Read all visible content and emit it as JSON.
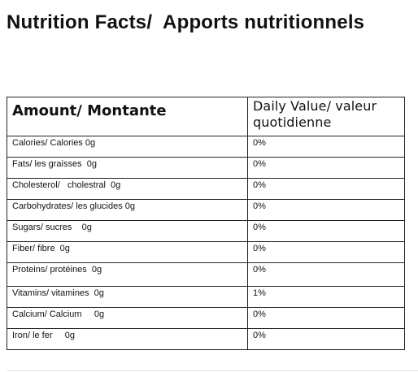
{
  "title": "Nutrition Facts/  Apports nutritionnels",
  "table": {
    "header_amount": "Amount/ Montante",
    "header_daily": "Daily Value/ valeur quotidienne",
    "rows": [
      {
        "amount": "Calories/ Calories 0g",
        "daily": "0%"
      },
      {
        "amount": "Fats/ les graisses  0g",
        "daily": "0%"
      },
      {
        "amount": "Cholesterol/   cholestral  0g",
        "daily": "0%"
      },
      {
        "amount": "Carbohydrates/ les glucides 0g",
        "daily": "0%"
      },
      {
        "amount": "Sugars/ sucres    0g",
        "daily": "0%"
      },
      {
        "amount": "Fiber/ fibre  0g",
        "daily": "0%"
      },
      {
        "amount": "Proteins/ protéines  0g",
        "daily": "0%"
      },
      {
        "amount": "Vitamins/ vitamines  0g",
        "daily": "1%"
      },
      {
        "amount": "Calcium/ Calcium     0g",
        "daily": "0%"
      },
      {
        "amount": "Iron/ le fer     0g",
        "daily": "0%"
      }
    ]
  }
}
